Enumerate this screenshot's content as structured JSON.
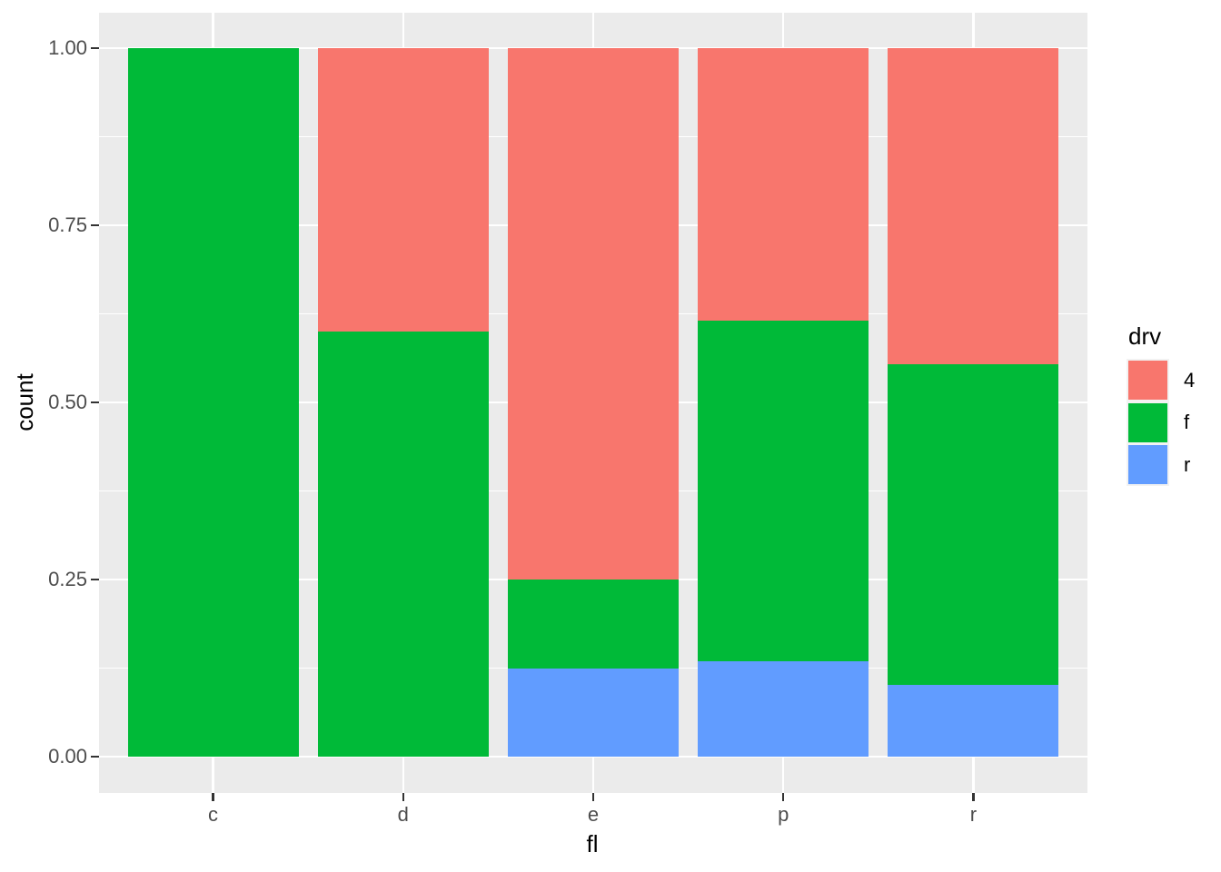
{
  "chart_data": {
    "type": "bar",
    "variant": "stacked-fill",
    "title": "",
    "xlabel": "fl",
    "ylabel": "count",
    "categories": [
      "c",
      "d",
      "e",
      "p",
      "r"
    ],
    "series": [
      {
        "name": "4",
        "color": "#F8766D",
        "values": [
          0,
          0.4,
          0.75,
          0.3846,
          0.4464
        ]
      },
      {
        "name": "f",
        "color": "#00BA38",
        "values": [
          1.0,
          0.6,
          0.125,
          0.4808,
          0.4524
        ]
      },
      {
        "name": "r",
        "color": "#619CFF",
        "values": [
          0,
          0,
          0.125,
          0.1346,
          0.1012
        ]
      }
    ],
    "stack_order_bottom_to_top": [
      "r",
      "f",
      "4"
    ],
    "ylim": [
      0,
      1
    ],
    "yticks": [
      {
        "label": "0.00",
        "value": 0
      },
      {
        "label": "0.25",
        "value": 0.25
      },
      {
        "label": "0.50",
        "value": 0.5
      },
      {
        "label": "0.75",
        "value": 0.75
      },
      {
        "label": "1.00",
        "value": 1
      }
    ],
    "minor_gridlines": [
      0.125,
      0.375,
      0.625,
      0.875
    ],
    "legend": {
      "title": "drv",
      "position": "right",
      "entries": [
        {
          "label": "4",
          "color": "#F8766D"
        },
        {
          "label": "f",
          "color": "#00BA38"
        },
        {
          "label": "r",
          "color": "#619CFF"
        }
      ]
    },
    "style": {
      "panel_bg": "#EBEBEB",
      "grid_color": "#FFFFFF",
      "tick_color": "#333333",
      "axis_text_color": "#4D4D4D",
      "axis_title_color": "#000000",
      "figure_bg": "#FFFFFF"
    }
  }
}
